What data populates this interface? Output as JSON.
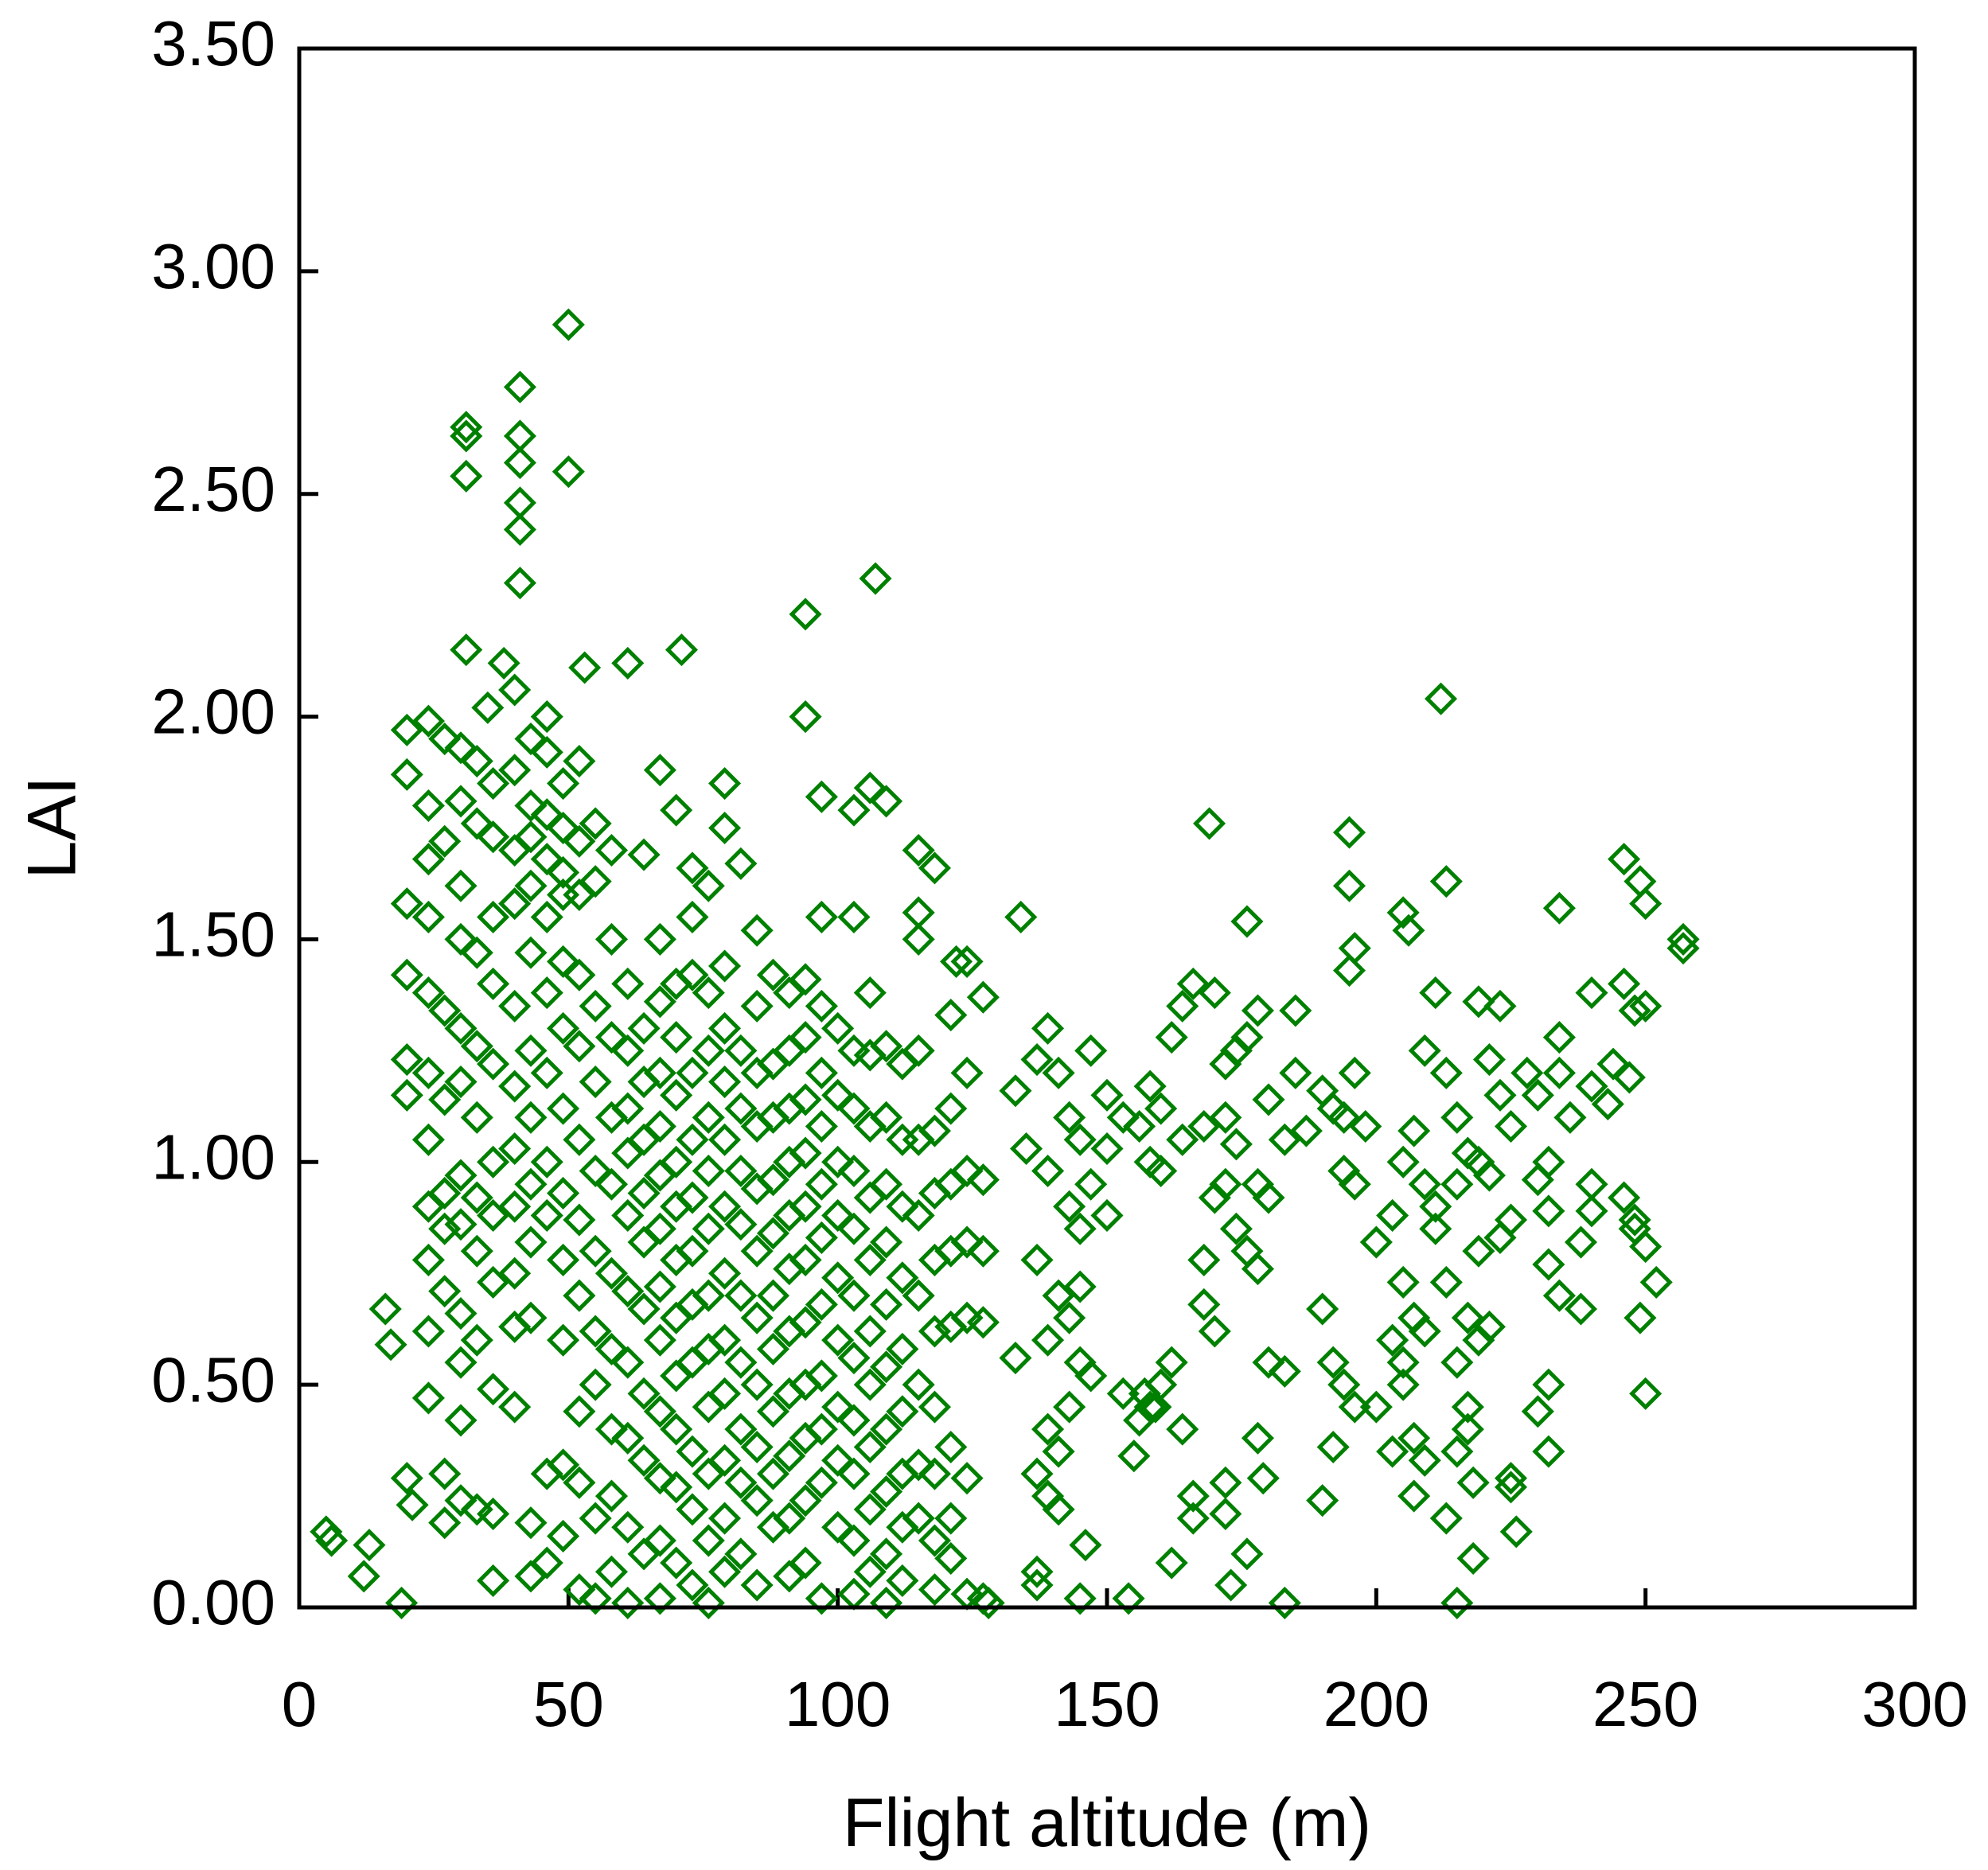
{
  "chart_data": {
    "type": "scatter",
    "color": "#008000",
    "x_label": "Flight altitude (m)",
    "y_label": "LAI",
    "xlim": [
      0,
      300
    ],
    "xticks": [
      0,
      50,
      100,
      150,
      200,
      250,
      300
    ],
    "ylim": [
      0,
      3.5
    ],
    "yticks": [
      {
        "value": 0,
        "label": "0.00"
      },
      {
        "value": 0.5,
        "label": "0.50"
      },
      {
        "value": 1,
        "label": "1.00"
      },
      {
        "value": 1.5,
        "label": "1.50"
      },
      {
        "value": 2,
        "label": "2.00"
      },
      {
        "value": 2.5,
        "label": "2.50"
      },
      {
        "value": 3,
        "label": "3.00"
      },
      {
        "value": 3.5,
        "label": "3.50"
      }
    ],
    "x": [
      50,
      31,
      31,
      31,
      41,
      41,
      41,
      41,
      41,
      41,
      50,
      107,
      94,
      31,
      38,
      53,
      61,
      71,
      40,
      35,
      212,
      94,
      169,
      195,
      246,
      213,
      195,
      249,
      250,
      234,
      257,
      257,
      205,
      206,
      176,
      134,
      122,
      196,
      195,
      5,
      6,
      13,
      12,
      19,
      20,
      21,
      16,
      17,
      250,
      249,
      252,
      248,
      247,
      244,
      240,
      226,
      225,
      218,
      215,
      213,
      218,
      183,
      179,
      178,
      173,
      172,
      159,
      155,
      157,
      162,
      154,
      146,
      145,
      137,
      128,
      20,
      20,
      20,
      20,
      20,
      20,
      24,
      24,
      24,
      24,
      24,
      24,
      24,
      24,
      24,
      24,
      24,
      27,
      27,
      27,
      27,
      27,
      27,
      27,
      27,
      27,
      30,
      30,
      30,
      30,
      30,
      30,
      30,
      30,
      30,
      30,
      30,
      30,
      33,
      33,
      33,
      33,
      33,
      33,
      33,
      33,
      33,
      36,
      36,
      36,
      36,
      36,
      36,
      36,
      36,
      36,
      36,
      36,
      40,
      40,
      40,
      40,
      40,
      40,
      40,
      40,
      40,
      40,
      43,
      43,
      43,
      43,
      43,
      43,
      43,
      43,
      43,
      43,
      43,
      43,
      46,
      46,
      46,
      46,
      46,
      46,
      46,
      46,
      46,
      46,
      46,
      49,
      49,
      49,
      49,
      49,
      49,
      49,
      49,
      49,
      49,
      49,
      49,
      52,
      52,
      52,
      52,
      52,
      52,
      52,
      52,
      52,
      52,
      52,
      55,
      55,
      55,
      55,
      55,
      55,
      55,
      55,
      55,
      55,
      58,
      58,
      58,
      58,
      58,
      58,
      58,
      58,
      58,
      58,
      61,
      61,
      61,
      61,
      61,
      61,
      61,
      61,
      61,
      61,
      64,
      64,
      64,
      64,
      64,
      64,
      64,
      64,
      64,
      64,
      67,
      67,
      67,
      67,
      67,
      67,
      67,
      67,
      67,
      67,
      67,
      67,
      67,
      70,
      70,
      70,
      70,
      70,
      70,
      70,
      70,
      70,
      70,
      70,
      70,
      73,
      73,
      73,
      73,
      73,
      73,
      73,
      73,
      73,
      73,
      73,
      73,
      76,
      76,
      76,
      76,
      76,
      76,
      76,
      76,
      76,
      76,
      76,
      76,
      79,
      79,
      79,
      79,
      79,
      79,
      79,
      79,
      79,
      79,
      79,
      79,
      79,
      82,
      82,
      82,
      82,
      82,
      82,
      82,
      82,
      82,
      82,
      85,
      85,
      85,
      85,
      85,
      85,
      85,
      85,
      85,
      85,
      85,
      88,
      88,
      88,
      88,
      88,
      88,
      88,
      88,
      88,
      88,
      91,
      91,
      91,
      91,
      91,
      91,
      91,
      91,
      91,
      91,
      91,
      94,
      94,
      94,
      94,
      94,
      94,
      94,
      94,
      94,
      94,
      94,
      97,
      97,
      97,
      97,
      97,
      97,
      97,
      97,
      97,
      97,
      97,
      97,
      100,
      100,
      100,
      100,
      100,
      100,
      100,
      100,
      100,
      103,
      103,
      103,
      103,
      103,
      103,
      103,
      103,
      103,
      103,
      103,
      103,
      106,
      106,
      106,
      106,
      106,
      106,
      106,
      106,
      106,
      106,
      106,
      109,
      109,
      109,
      109,
      109,
      109,
      109,
      109,
      109,
      109,
      109,
      112,
      112,
      112,
      112,
      112,
      112,
      112,
      112,
      112,
      115,
      115,
      115,
      115,
      115,
      115,
      115,
      115,
      115,
      115,
      118,
      118,
      118,
      118,
      118,
      118,
      118,
      118,
      118,
      121,
      121,
      121,
      121,
      121,
      121,
      121,
      121,
      124,
      124,
      124,
      124,
      124,
      124,
      124,
      127,
      127,
      127,
      127,
      127,
      133,
      133,
      135,
      137,
      137,
      137,
      137,
      139,
      139,
      139,
      139,
      139,
      141,
      141,
      141,
      141,
      143,
      143,
      143,
      143,
      145,
      145,
      145,
      145,
      147,
      147,
      147,
      150,
      150,
      150,
      153,
      153,
      156,
      156,
      158,
      158,
      158,
      160,
      160,
      160,
      162,
      162,
      164,
      164,
      164,
      166,
      166,
      166,
      168,
      168,
      168,
      170,
      170,
      170,
      172,
      172,
      172,
      172,
      174,
      174,
      174,
      176,
      176,
      176,
      178,
      178,
      178,
      180,
      180,
      180,
      183,
      183,
      185,
      185,
      187,
      190,
      190,
      190,
      192,
      192,
      192,
      194,
      194,
      194,
      196,
      196,
      196,
      198,
      200,
      200,
      203,
      203,
      203,
      205,
      205,
      205,
      205,
      207,
      207,
      207,
      207,
      209,
      209,
      209,
      209,
      211,
      211,
      211,
      213,
      213,
      215,
      215,
      215,
      215,
      217,
      217,
      217,
      217,
      219,
      219,
      219,
      219,
      221,
      221,
      221,
      223,
      223,
      223,
      225,
      225,
      225,
      228,
      230,
      230,
      230,
      232,
      232,
      232,
      232,
      232,
      234,
      234,
      234,
      236,
      238,
      238,
      240,
      240,
      240,
      243,
      246,
      246,
      248,
      248,
      250,
      250
    ],
    "values": [
      2.88,
      2.65,
      2.63,
      2.54,
      2.74,
      2.63,
      2.57,
      2.48,
      2.42,
      2.3,
      2.55,
      2.31,
      2.23,
      2.15,
      2.12,
      2.11,
      2.12,
      2.15,
      2.06,
      2.02,
      2.04,
      2.0,
      1.76,
      1.74,
      1.68,
      1.63,
      1.62,
      1.63,
      1.58,
      1.57,
      1.5,
      1.48,
      1.56,
      1.52,
      1.54,
      1.55,
      1.45,
      1.48,
      1.43,
      0.17,
      0.15,
      0.14,
      0.07,
      0.01,
      0.29,
      0.23,
      0.67,
      0.59,
      0.48,
      0.65,
      0.73,
      0.85,
      1.19,
      1.22,
      1.38,
      0.17,
      0.27,
      0.11,
      0.01,
      0.2,
      0.28,
      0.01,
      0.29,
      0.38,
      0.05,
      0.21,
      0.45,
      0.34,
      0.48,
      0.1,
      0.02,
      0.14,
      0.02,
      0.05,
      0.01,
      1.97,
      1.87,
      1.58,
      1.42,
      1.23,
      1.15,
      1.99,
      1.8,
      1.68,
      1.55,
      1.38,
      1.2,
      1.05,
      0.9,
      0.78,
      0.62,
      0.47,
      1.95,
      1.72,
      1.34,
      1.14,
      0.93,
      0.85,
      0.71,
      0.3,
      0.19,
      1.93,
      1.81,
      1.62,
      1.5,
      1.3,
      1.18,
      0.97,
      0.86,
      0.66,
      0.55,
      0.42,
      0.24,
      1.9,
      1.76,
      1.47,
      1.26,
      1.1,
      0.92,
      0.8,
      0.6,
      0.22,
      1.85,
      1.73,
      1.55,
      1.4,
      1.22,
      1.0,
      0.88,
      0.73,
      0.49,
      0.21,
      0.06,
      1.88,
      1.7,
      1.58,
      1.35,
      1.17,
      1.03,
      0.9,
      0.75,
      0.63,
      0.45,
      1.95,
      1.8,
      1.73,
      1.62,
      1.47,
      1.25,
      1.1,
      0.95,
      0.82,
      0.65,
      0.19,
      0.07,
      2.0,
      1.92,
      1.78,
      1.68,
      1.55,
      1.38,
      1.2,
      1.0,
      0.88,
      0.3,
      0.1,
      1.85,
      1.75,
      1.65,
      1.6,
      1.45,
      1.3,
      1.12,
      0.93,
      0.78,
      0.6,
      0.32,
      0.16,
      1.9,
      1.72,
      1.6,
      1.42,
      1.26,
      1.05,
      0.87,
      0.7,
      0.44,
      0.28,
      0.04,
      1.76,
      1.63,
      1.35,
      1.18,
      0.98,
      0.8,
      0.62,
      0.5,
      0.2,
      0.02,
      1.7,
      1.5,
      1.28,
      1.1,
      0.95,
      0.75,
      0.58,
      0.4,
      0.25,
      0.08,
      1.4,
      1.25,
      1.12,
      1.02,
      0.88,
      0.71,
      0.55,
      0.38,
      0.18,
      0.01,
      1.69,
      1.3,
      1.18,
      1.05,
      0.93,
      0.82,
      0.67,
      0.48,
      0.33,
      0.12,
      1.88,
      1.5,
      1.36,
      1.2,
      1.08,
      0.97,
      0.85,
      0.72,
      0.6,
      0.44,
      0.29,
      0.15,
      0.02,
      1.79,
      1.4,
      1.28,
      1.15,
      1.0,
      0.9,
      0.78,
      0.65,
      0.52,
      0.4,
      0.27,
      0.1,
      1.66,
      1.55,
      1.42,
      1.2,
      1.05,
      0.92,
      0.8,
      0.68,
      0.55,
      0.35,
      0.22,
      0.05,
      1.62,
      1.38,
      1.25,
      1.1,
      0.98,
      0.85,
      0.7,
      0.58,
      0.45,
      0.3,
      0.15,
      0.01,
      1.85,
      1.75,
      1.44,
      1.3,
      1.18,
      1.05,
      0.9,
      0.75,
      0.6,
      0.48,
      0.33,
      0.2,
      0.08,
      1.67,
      1.25,
      1.12,
      0.98,
      0.86,
      0.7,
      0.55,
      0.4,
      0.28,
      0.12,
      1.52,
      1.35,
      1.2,
      1.08,
      0.94,
      0.8,
      0.65,
      0.5,
      0.36,
      0.24,
      0.05,
      1.42,
      1.22,
      1.1,
      0.96,
      0.84,
      0.7,
      0.58,
      0.44,
      0.3,
      0.18,
      1.38,
      1.25,
      1.12,
      1.0,
      0.88,
      0.76,
      0.62,
      0.48,
      0.34,
      0.2,
      0.07,
      1.41,
      1.28,
      1.14,
      1.02,
      0.9,
      0.78,
      0.64,
      0.5,
      0.38,
      0.24,
      0.1,
      1.82,
      1.55,
      1.35,
      1.2,
      1.08,
      0.95,
      0.83,
      0.68,
      0.52,
      0.4,
      0.28,
      0.02,
      1.3,
      1.15,
      1.0,
      0.88,
      0.74,
      0.6,
      0.45,
      0.33,
      0.18,
      1.79,
      1.55,
      1.25,
      1.12,
      0.98,
      0.85,
      0.7,
      0.56,
      0.42,
      0.3,
      0.15,
      0.03,
      1.84,
      1.38,
      1.24,
      1.08,
      0.92,
      0.78,
      0.62,
      0.5,
      0.36,
      0.22,
      0.08,
      1.81,
      1.26,
      1.1,
      0.95,
      0.82,
      0.68,
      0.54,
      0.4,
      0.26,
      0.12,
      0.01,
      1.22,
      1.05,
      0.9,
      0.74,
      0.58,
      0.44,
      0.3,
      0.18,
      0.06,
      1.7,
      1.56,
      1.5,
      1.25,
      1.05,
      0.88,
      0.7,
      0.5,
      0.32,
      0.2,
      1.66,
      1.07,
      0.93,
      0.78,
      0.62,
      0.45,
      0.3,
      0.15,
      0.04,
      1.33,
      1.12,
      0.95,
      0.8,
      0.63,
      0.36,
      0.2,
      0.11,
      1.45,
      1.2,
      0.98,
      0.82,
      0.65,
      0.29,
      0.03,
      1.37,
      0.96,
      0.8,
      0.64,
      0.02,
      1.16,
      0.56,
      1.03,
      1.23,
      0.78,
      0.3,
      0.08,
      1.3,
      0.98,
      0.6,
      0.4,
      0.25,
      1.2,
      0.7,
      0.35,
      0.22,
      1.1,
      0.9,
      0.65,
      0.45,
      1.05,
      0.85,
      0.55,
      0.72,
      1.25,
      0.95,
      0.52,
      1.15,
      0.88,
      1.03,
      1.1,
      0.48,
      1.08,
      0.42,
      1.17,
      1.0,
      0.45,
      1.12,
      0.98,
      0.5,
      1.28,
      0.55,
      1.35,
      1.05,
      0.4,
      1.4,
      0.25,
      0.2,
      1.08,
      0.78,
      0.68,
      1.38,
      0.92,
      0.62,
      1.22,
      1.1,
      0.95,
      0.28,
      1.25,
      1.04,
      0.85,
      1.28,
      0.8,
      0.12,
      1.34,
      0.95,
      0.76,
      1.14,
      0.92,
      0.55,
      1.05,
      0.53,
      1.2,
      1.34,
      1.07,
      1.16,
      0.67,
      0.24,
      1.12,
      0.55,
      0.36,
      1.1,
      0.98,
      0.5,
      1.2,
      0.95,
      0.45,
      1.08,
      0.82,
      0.45,
      0.88,
      0.6,
      0.35,
      1.0,
      0.73,
      0.55,
      0.5,
      1.07,
      0.65,
      0.38,
      0.25,
      1.25,
      0.95,
      0.62,
      0.33,
      1.38,
      0.9,
      0.85,
      1.2,
      0.73,
      1.1,
      0.95,
      0.55,
      0.35,
      1.02,
      0.65,
      0.45,
      0.4,
      1.36,
      1.0,
      0.8,
      0.6,
      1.23,
      0.97,
      0.63,
      1.35,
      1.15,
      0.83,
      1.08,
      0.87,
      0.29,
      1.2,
      1.15,
      0.96,
      0.44,
      1.0,
      0.89,
      0.77,
      0.5,
      0.35,
      1.28,
      1.2,
      0.7,
      1.1,
      0.82,
      0.67,
      1.17,
      0.95,
      0.89,
      1.13,
      1.4,
      0.92,
      0.87,
      1.34,
      1.35,
      0.81
    ]
  }
}
